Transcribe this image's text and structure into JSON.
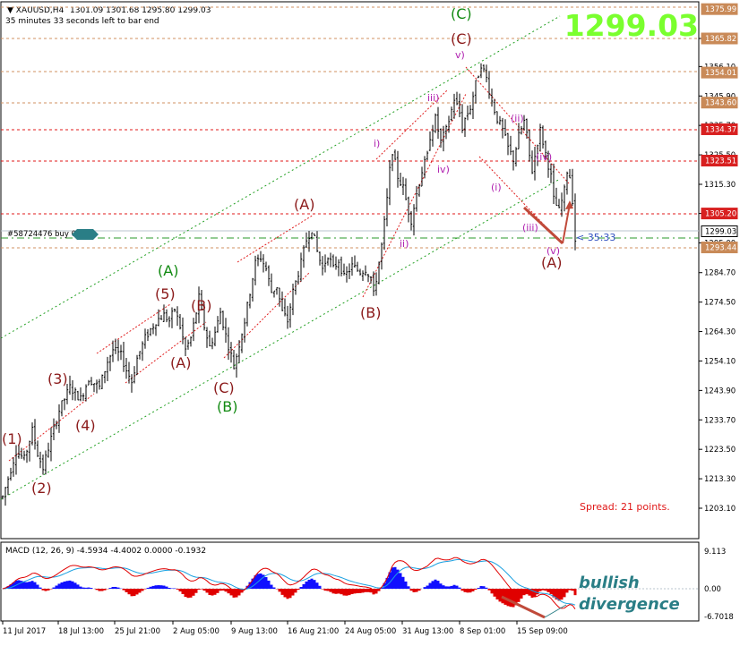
{
  "header": {
    "symbol": "XAUUSD,H4",
    "ohlc": "1301.09 1301.68 1295.80 1299.03",
    "countdown": "35 minutes 33 seconds left to bar end"
  },
  "big_price": "1299.03",
  "spread": "Spread: 21 points.",
  "order_label": "#58724476 buy 0.",
  "timer": "35:33",
  "note": {
    "line1": "bullish",
    "line2": "divergence"
  },
  "colors": {
    "bull": "#000000",
    "up_text": "#7aff2e",
    "wave_dark": "#8b1a1a",
    "wave_green": "#128a12",
    "wave_purple": "#b020b0",
    "level_red": "#e01818",
    "level_orange": "#d09060",
    "tag_orange": "#c98a58",
    "tag_red": "#d82020",
    "macd_hist": "#1010ff",
    "macd_hist_neg": "#e00000",
    "macd_main": "#e00000",
    "macd_signal": "#1aa0e0",
    "arrow": "#c04a3a",
    "note_color": "#2a7e86"
  },
  "chart_data": [
    {
      "type": "line",
      "name": "price",
      "title": "XAUUSD,H4",
      "x_axis_labels": [
        "11 Jul 2017",
        "18 Jul 13:00",
        "25 Jul 21:00",
        "2 Aug 05:00",
        "9 Aug 13:00",
        "16 Aug 21:00",
        "24 Aug 05:00",
        "31 Aug 13:00",
        "8 Sep 01:00",
        "15 Sep 09:00"
      ],
      "y_axis_labels": [
        "1365.82",
        "1356.10",
        "1345.90",
        "1335.70",
        "1325.50",
        "1315.30",
        "1305.20",
        "1295.00",
        "1284.70",
        "1274.50",
        "1264.30",
        "1254.10",
        "1243.90",
        "1233.70",
        "1223.50",
        "1213.30",
        "1203.10"
      ],
      "ylim": [
        1198,
        1378
      ],
      "price_path": [
        [
          0,
          1207
        ],
        [
          5,
          1223
        ],
        [
          8,
          1220
        ],
        [
          11,
          1230
        ],
        [
          13,
          1222
        ],
        [
          15,
          1217
        ],
        [
          17,
          1224
        ],
        [
          21,
          1237
        ],
        [
          25,
          1245
        ],
        [
          29,
          1241
        ],
        [
          32,
          1248
        ],
        [
          36,
          1245
        ],
        [
          39,
          1254
        ],
        [
          41,
          1258
        ],
        [
          44,
          1256
        ],
        [
          46,
          1251
        ],
        [
          48,
          1247
        ],
        [
          50,
          1255
        ],
        [
          53,
          1262
        ],
        [
          57,
          1268
        ],
        [
          60,
          1270
        ],
        [
          62,
          1268
        ],
        [
          64,
          1272
        ],
        [
          66,
          1266
        ],
        [
          68,
          1258
        ],
        [
          70,
          1262
        ],
        [
          72,
          1271
        ],
        [
          73,
          1276
        ],
        [
          75,
          1266
        ],
        [
          77,
          1259
        ],
        [
          79,
          1264
        ],
        [
          81,
          1271
        ],
        [
          83,
          1263
        ],
        [
          85,
          1256
        ],
        [
          86,
          1252
        ],
        [
          88,
          1260
        ],
        [
          90,
          1268
        ],
        [
          92,
          1278
        ],
        [
          94,
          1288
        ],
        [
          96,
          1290
        ],
        [
          98,
          1286
        ],
        [
          100,
          1278
        ],
        [
          102,
          1280
        ],
        [
          104,
          1271
        ],
        [
          106,
          1268
        ],
        [
          108,
          1278
        ],
        [
          111,
          1288
        ],
        [
          113,
          1296
        ],
        [
          115,
          1300
        ],
        [
          117,
          1292
        ],
        [
          119,
          1286
        ],
        [
          121,
          1291
        ],
        [
          123,
          1286
        ],
        [
          125,
          1289
        ],
        [
          127,
          1283
        ],
        [
          130,
          1287
        ],
        [
          133,
          1285
        ],
        [
          135,
          1286
        ],
        [
          137,
          1283
        ],
        [
          138,
          1277
        ],
        [
          141,
          1294
        ],
        [
          143,
          1310
        ],
        [
          144,
          1320
        ],
        [
          145,
          1327
        ],
        [
          147,
          1318
        ],
        [
          149,
          1314
        ],
        [
          151,
          1306
        ],
        [
          152,
          1303
        ],
        [
          154,
          1312
        ],
        [
          156,
          1320
        ],
        [
          158,
          1325
        ],
        [
          159,
          1332
        ],
        [
          161,
          1338
        ],
        [
          163,
          1330
        ],
        [
          165,
          1334
        ],
        [
          167,
          1341
        ],
        [
          168,
          1345
        ],
        [
          170,
          1340
        ],
        [
          171,
          1335
        ],
        [
          172,
          1338
        ],
        [
          174,
          1342
        ],
        [
          176,
          1350
        ],
        [
          178,
          1357
        ],
        [
          180,
          1352
        ],
        [
          182,
          1344
        ],
        [
          184,
          1338
        ],
        [
          186,
          1334
        ],
        [
          188,
          1328
        ],
        [
          190,
          1324
        ],
        [
          192,
          1332
        ],
        [
          194,
          1337
        ],
        [
          195,
          1332
        ],
        [
          196,
          1325
        ],
        [
          197,
          1320
        ],
        [
          199,
          1330
        ],
        [
          200,
          1334
        ],
        [
          202,
          1326
        ],
        [
          204,
          1318
        ],
        [
          205,
          1310
        ],
        [
          207,
          1306
        ],
        [
          209,
          1313
        ],
        [
          210,
          1320
        ],
        [
          211,
          1318
        ],
        [
          212,
          1310
        ],
        [
          213,
          1296
        ]
      ],
      "waves": {
        "dark": [
          "(1)",
          "(2)",
          "(3)",
          "(4)",
          "(5)",
          "(A)",
          "(B)",
          "(C)",
          "(A)",
          "(B)",
          "(C)",
          "(A)"
        ],
        "green": [
          "(A)",
          "(B)",
          "(C)"
        ],
        "purple": [
          "i)",
          "ii)",
          "iii)",
          "iv)",
          "v)",
          "(i)",
          "(ii)",
          "(iii)",
          "(iv)",
          "(v)"
        ]
      },
      "levels": [
        1375.99,
        1365.82,
        1354.01,
        1343.6,
        1334.37,
        1323.51,
        1305.2,
        1293.44,
        1299.03
      ],
      "level_tags": [
        "1375.99",
        "1365.82",
        "1354.01",
        "1343.60",
        "1334.37",
        "1323.51",
        "1305.20",
        "1293.44",
        "1299.03"
      ]
    },
    {
      "type": "bar",
      "name": "MACD",
      "title": "MACD (12, 26, 9) -4.5934 -4.4002 0.0000 -0.1932",
      "y_axis_labels": [
        "9.113",
        "0.00",
        "-6.7018"
      ],
      "ylim": [
        -8.5,
        10.5
      ]
    }
  ]
}
